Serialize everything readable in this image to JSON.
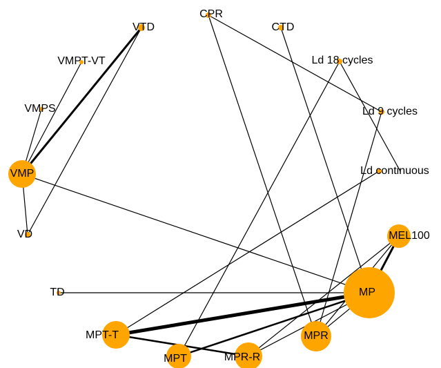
{
  "nodes": [
    {
      "label": "CPR"
    },
    {
      "label": "CTD"
    },
    {
      "label": "VTD"
    },
    {
      "label": "VMPT-VT"
    },
    {
      "label": "Ld 18 cycles"
    },
    {
      "label": "VMPS"
    },
    {
      "label": "Ld 9 cycles"
    },
    {
      "label": "VMP"
    },
    {
      "label": "Ld continuous"
    },
    {
      "label": "VD"
    },
    {
      "label": "MEL100"
    },
    {
      "label": "TD"
    },
    {
      "label": "MP"
    },
    {
      "label": "MPT-T"
    },
    {
      "label": "MPR"
    },
    {
      "label": "MPT"
    },
    {
      "label": "MPR-R"
    }
  ]
}
